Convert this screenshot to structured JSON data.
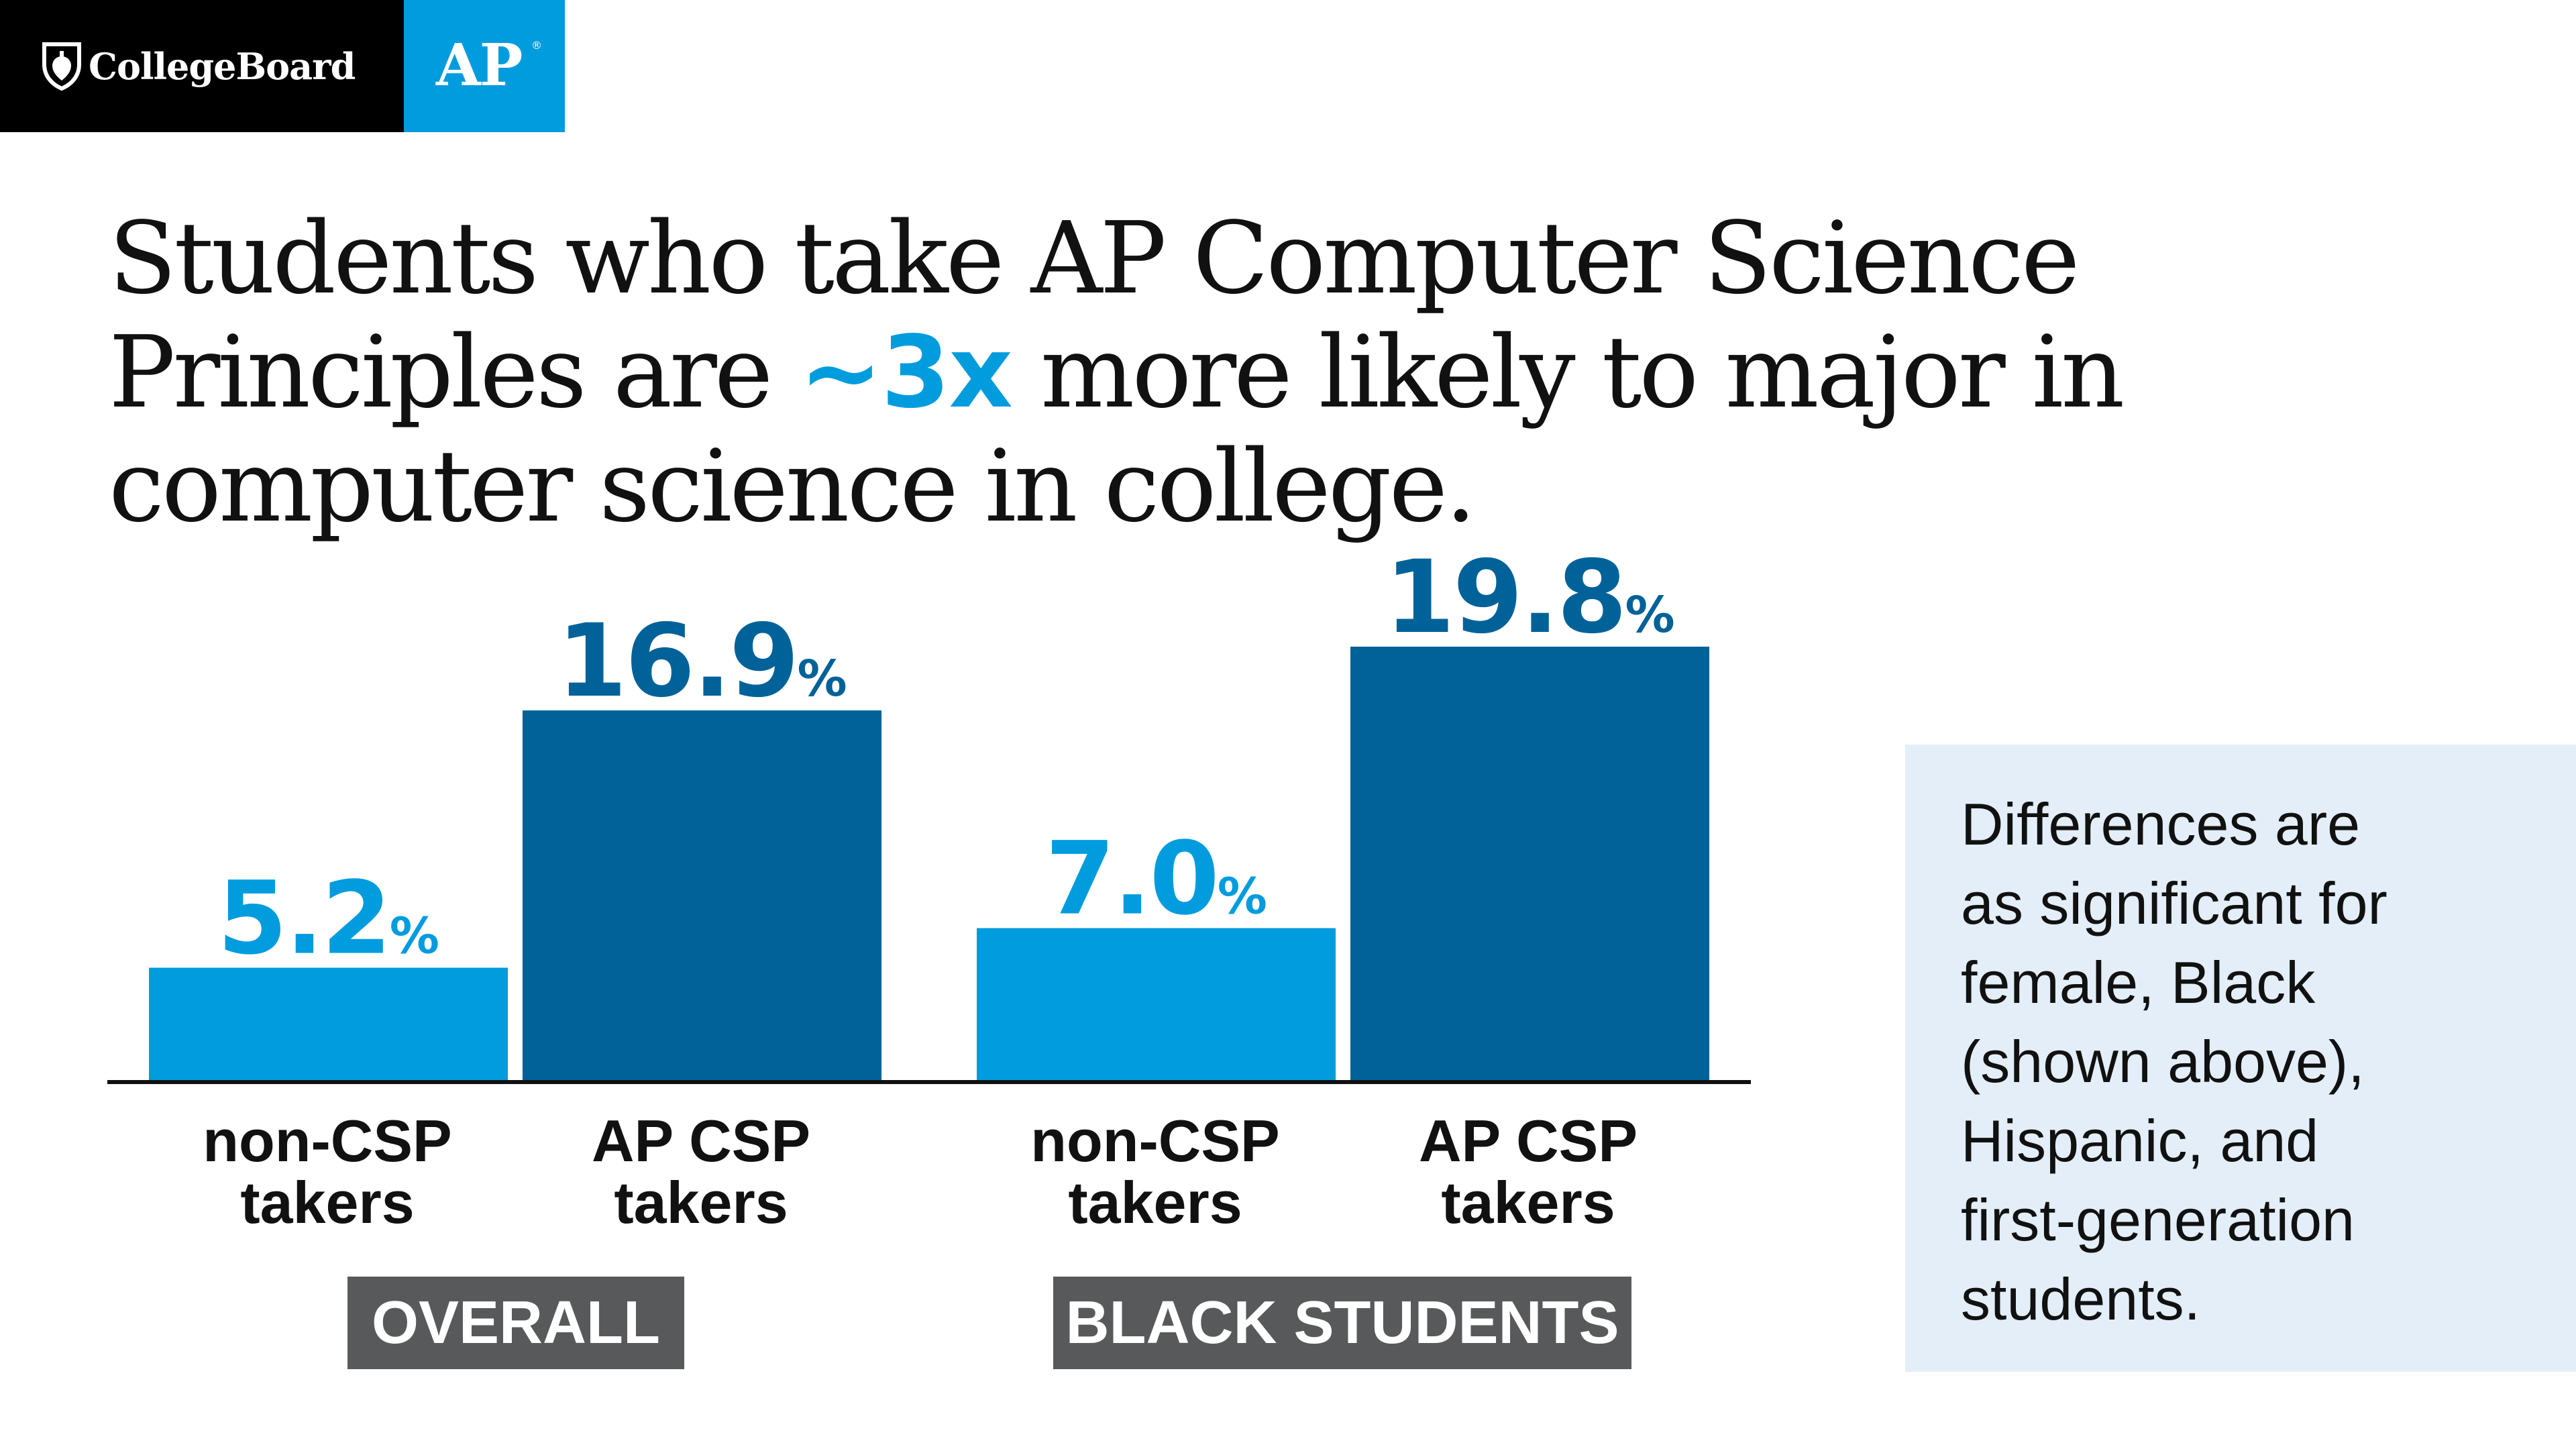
{
  "brand": {
    "collegeboard": "CollegeBoard",
    "ap": "AP",
    "registered": "®"
  },
  "headline": {
    "line1": "Students who take AP Computer Science",
    "line2_before": "Principles are ",
    "line2_accent": "~3x",
    "line2_after": " more likely to major in",
    "line3": "computer science in college."
  },
  "colors": {
    "light_blue": "#009cde",
    "dark_blue": "#006298",
    "group_label_bg": "#58595b",
    "note_bg": "#e3eef8"
  },
  "chart_data": {
    "type": "bar",
    "groups": [
      "OVERALL",
      "BLACK STUDENTS"
    ],
    "categories": [
      "non-CSP takers",
      "AP CSP takers"
    ],
    "category_lines": [
      [
        "non-CSP",
        "takers"
      ],
      [
        "AP CSP",
        "takers"
      ]
    ],
    "series": [
      {
        "group": "OVERALL",
        "values": [
          5.2,
          16.9
        ],
        "labels": [
          "5.2",
          "16.9"
        ]
      },
      {
        "group": "BLACK STUDENTS",
        "values": [
          7.0,
          19.8
        ],
        "labels": [
          "7.0",
          "19.8"
        ]
      }
    ],
    "unit": "%",
    "bar_colors": [
      "#009cde",
      "#006298"
    ],
    "grid": false,
    "legend": "none"
  },
  "note": {
    "lines": [
      "Differences are",
      "as significant for",
      "female, Black",
      "(shown above),",
      "Hispanic, and",
      "first-generation",
      "students."
    ]
  }
}
